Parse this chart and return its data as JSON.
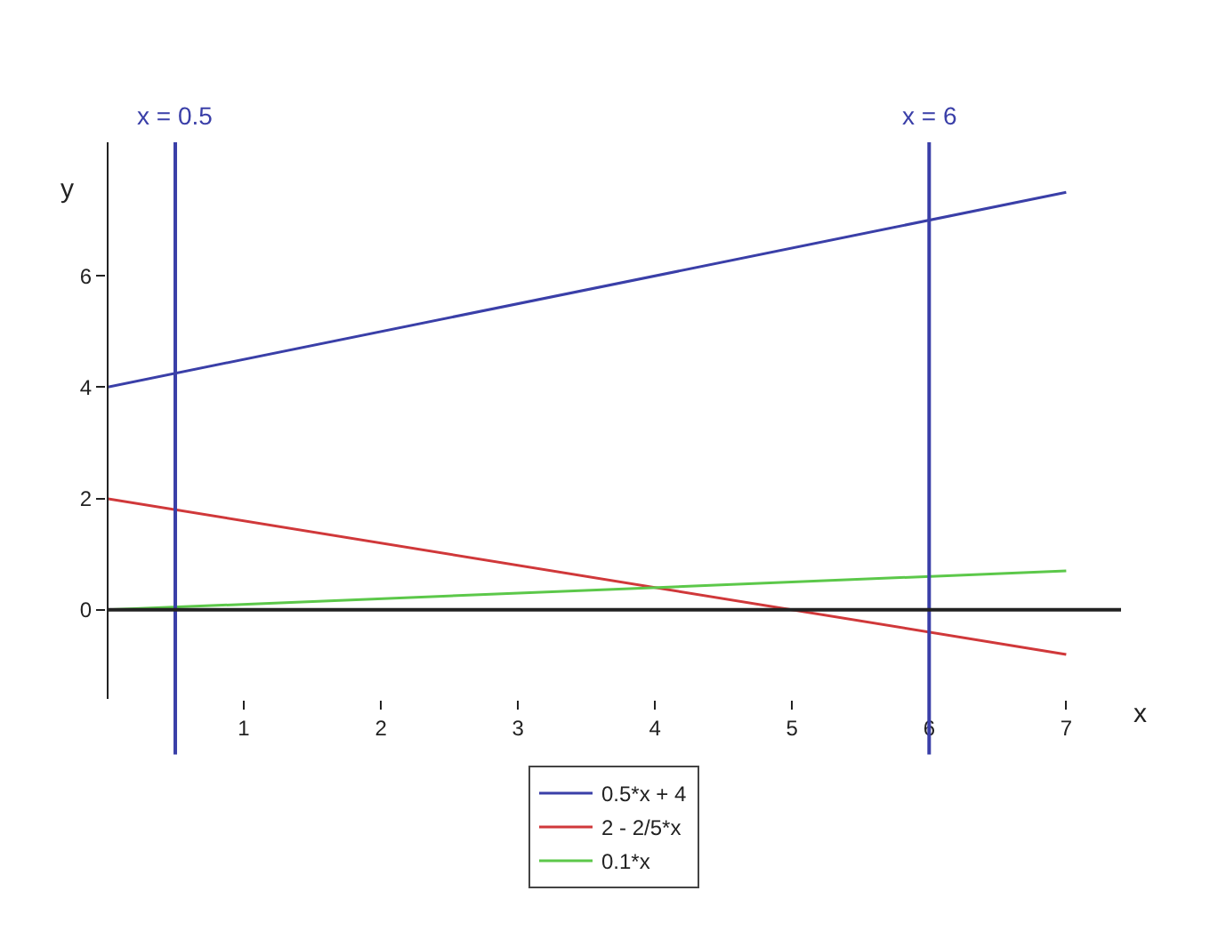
{
  "chart_data": {
    "type": "line",
    "xlabel": "x",
    "ylabel": "y",
    "x": [
      0,
      7
    ],
    "series": [
      {
        "name": "0.5*x + 4",
        "color": "#3a3fa8",
        "values": [
          4,
          7.5
        ]
      },
      {
        "name": "2 - 2/5*x",
        "color": "#d0383a",
        "values": [
          2,
          -0.8
        ]
      },
      {
        "name": "0.1*x",
        "color": "#5cc84a",
        "values": [
          0,
          0.7
        ]
      }
    ],
    "xlim": [
      0,
      7.4
    ],
    "ylim": [
      -1.6,
      8.4
    ],
    "xticks": [
      1,
      2,
      3,
      4,
      5,
      6,
      7
    ],
    "yticks": [
      0,
      2,
      4,
      6
    ],
    "ref_lines": [
      {
        "axis": "x",
        "value": 0.5,
        "label": "x = 0.5",
        "color": "#3a3fa8"
      },
      {
        "axis": "x",
        "value": 6,
        "label": "x = 6",
        "color": "#3a3fa8"
      }
    ],
    "legend": "bottom",
    "marker": "none",
    "line_style": "solid"
  }
}
